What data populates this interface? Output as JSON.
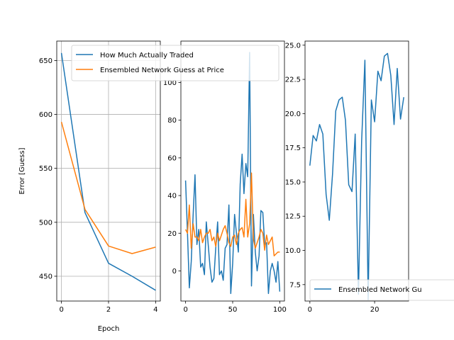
{
  "chart_data": [
    {
      "type": "line",
      "xlabel": "Epoch",
      "ylabel": "Error [Guess]",
      "grid": true,
      "xlim": [
        -0.2,
        4.2
      ],
      "ylim": [
        427,
        668
      ],
      "xticks": [
        0,
        2,
        4
      ],
      "yticks": [
        450,
        500,
        550,
        600,
        650
      ],
      "legend": "top-right",
      "series": [
        {
          "name": "How Much Actually Traded",
          "color": "#1f77b4",
          "x": [
            0,
            1,
            2,
            3,
            4
          ],
          "y": [
            657,
            509,
            462,
            450,
            437
          ]
        },
        {
          "name": "Ensembled Network Guess at Price",
          "color": "#ff7f0e",
          "x": [
            0,
            1,
            2,
            3,
            4
          ],
          "y": [
            593,
            512,
            478,
            471,
            477
          ]
        }
      ]
    },
    {
      "type": "line",
      "xlabel": "",
      "ylabel": "",
      "grid": false,
      "xlim": [
        -5,
        105
      ],
      "ylim": [
        -16,
        122
      ],
      "xticks": [
        0,
        50,
        100
      ],
      "yticks": [
        0,
        20,
        40,
        60,
        80,
        100
      ],
      "series": [
        {
          "color": "#1f77b4",
          "x": [
            0,
            2,
            4,
            6,
            8,
            10,
            12,
            14,
            16,
            18,
            20,
            22,
            24,
            26,
            28,
            30,
            32,
            34,
            36,
            38,
            40,
            42,
            44,
            46,
            48,
            50,
            52,
            54,
            56,
            58,
            60,
            62,
            64,
            66,
            68,
            70,
            72,
            74,
            76,
            78,
            80,
            82,
            84,
            86,
            88,
            90,
            92,
            94,
            96,
            98,
            100
          ],
          "y": [
            48,
            20,
            -9,
            5,
            30,
            51,
            14,
            22,
            2,
            4,
            -2,
            26,
            14,
            2,
            -6,
            -4,
            12,
            26,
            -2,
            0,
            -5,
            12,
            14,
            35,
            -12,
            4,
            30,
            20,
            10,
            46,
            62,
            41,
            57,
            50,
            116,
            -8,
            30,
            10,
            0,
            8,
            32,
            31,
            14,
            15,
            -12,
            0,
            4,
            0,
            -6,
            5,
            -11
          ]
        },
        {
          "color": "#ff7f0e",
          "x": [
            0,
            2,
            4,
            6,
            8,
            10,
            12,
            14,
            16,
            18,
            20,
            22,
            24,
            26,
            28,
            30,
            32,
            34,
            36,
            38,
            40,
            42,
            44,
            46,
            48,
            50,
            52,
            54,
            56,
            58,
            60,
            62,
            64,
            66,
            68,
            70,
            72,
            74,
            76,
            78,
            80,
            82,
            84,
            86,
            88,
            90,
            92,
            94,
            96,
            98,
            100
          ],
          "y": [
            22,
            20,
            35,
            12,
            25,
            18,
            18,
            16,
            22,
            15,
            18,
            20,
            20,
            22,
            16,
            18,
            13,
            20,
            16,
            19,
            22,
            24,
            20,
            15,
            13,
            18,
            19,
            14,
            20,
            22,
            23,
            18,
            38,
            18,
            25,
            52,
            17,
            12,
            15,
            18,
            22,
            20,
            11,
            19,
            14,
            16,
            18,
            8,
            9,
            10,
            10
          ]
        }
      ]
    },
    {
      "type": "line",
      "xlabel": "",
      "ylabel": "",
      "grid": false,
      "xlim": [
        -1.5,
        30.5
      ],
      "ylim": [
        6.3,
        25.3
      ],
      "xticks": [
        0,
        20
      ],
      "yticks": [
        7.5,
        10.0,
        12.5,
        15.0,
        17.5,
        20.0,
        22.5,
        25.0
      ],
      "ytick_labels": [
        "7.5",
        "10.0",
        "12.5",
        "15.0",
        "17.5",
        "20.0",
        "22.5",
        "25.0"
      ],
      "legend": "lower-right",
      "series": [
        {
          "name": "Ensembled Network Gu",
          "color": "#1f77b4",
          "x": [
            0,
            1,
            2,
            3,
            4,
            5,
            6,
            7,
            8,
            9,
            10,
            11,
            12,
            13,
            14,
            15,
            16,
            17,
            18,
            19,
            20,
            21,
            22,
            23,
            24,
            25,
            26,
            27,
            28,
            29
          ],
          "y": [
            16.2,
            18.4,
            18.0,
            19.2,
            18.5,
            14.1,
            12.2,
            15.6,
            20.2,
            21.0,
            21.2,
            19.5,
            14.8,
            14.3,
            18.5,
            6.8,
            18.0,
            23.9,
            6.4,
            21.0,
            19.4,
            23.1,
            22.4,
            24.2,
            24.4,
            22.8,
            19.2,
            23.3,
            19.6,
            21.2
          ]
        }
      ]
    }
  ]
}
